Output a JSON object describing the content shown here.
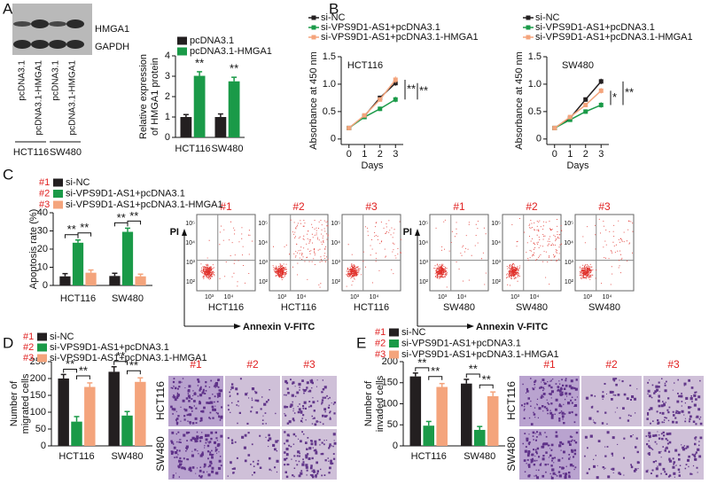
{
  "panel_labels": [
    "A",
    "B",
    "C",
    "D",
    "E"
  ],
  "blot": {
    "bands": [
      "HMGA1",
      "GAPDH"
    ],
    "lanes": [
      "pcDNA3.1",
      "pcDNA3.1-HMGA1",
      "pcDNA3.1",
      "pcDNA3.1-HMGA1"
    ],
    "groups": [
      "HCT116",
      "SW480"
    ]
  },
  "flow": {
    "y_label": "PI",
    "x_label": "Annexin V-FITC",
    "y_ticks": [
      "10⁵",
      "10⁴",
      "10³",
      "10²"
    ],
    "x_ticks": [
      "10³",
      "10⁴"
    ],
    "groups": [
      {
        "cell": "HCT116",
        "plots": [
          "#1",
          "#2",
          "#3"
        ]
      },
      {
        "cell": "SW480",
        "plots": [
          "#1",
          "#2",
          "#3"
        ]
      }
    ]
  },
  "micrographs": [
    {
      "columns": [
        "#1",
        "#2",
        "#3"
      ],
      "rows": [
        "HCT116",
        "SW480"
      ]
    },
    {
      "columns": [
        "#1",
        "#2",
        "#3"
      ],
      "rows": [
        "HCT116",
        "SW480"
      ]
    }
  ],
  "chart_data": [
    {
      "type": "bar",
      "y_label": [
        "Relative expression",
        "of HMGA1 protein"
      ],
      "categories": [
        "HCT116",
        "SW480"
      ],
      "series": [
        {
          "name": "pcDNA3.1",
          "color": "#231f20",
          "values": [
            1,
            1
          ],
          "errors": [
            0.12,
            0.15
          ]
        },
        {
          "name": "pcDNA3.1-HMGA1",
          "color": "#1a9a48",
          "values": [
            3.02,
            2.75
          ],
          "errors": [
            0.2,
            0.2
          ]
        }
      ],
      "ylim": [
        0,
        4
      ],
      "yticks": [
        0,
        1,
        2,
        3,
        4
      ],
      "annotations": [
        "**",
        "**"
      ]
    },
    {
      "type": "line",
      "subtitle": "HCT116",
      "x_label": "Days",
      "y_label": [
        "Absorbance at 450 nm"
      ],
      "x": [
        0,
        1,
        2,
        3
      ],
      "series": [
        {
          "name": "si-NC",
          "color": "#231f20",
          "values": [
            0.2,
            0.42,
            0.75,
            1.02
          ],
          "errors": [
            0.03,
            0.03,
            0.04,
            0.05
          ]
        },
        {
          "name": "si-VPS9D1-AS1+pcDNA3.1",
          "color": "#1a9a48",
          "values": [
            0.2,
            0.4,
            0.55,
            0.72
          ],
          "errors": [
            0.03,
            0.03,
            0.04,
            0.05
          ]
        },
        {
          "name": "si-VPS9D1-AS1+pcDNA3.1-HMGA1",
          "color": "#f4a47c",
          "values": [
            0.2,
            0.43,
            0.72,
            1.08
          ],
          "errors": [
            0.03,
            0.03,
            0.04,
            0.06
          ]
        }
      ],
      "xlim": [
        -0.5,
        3.5
      ],
      "xticks": [
        0,
        1,
        2,
        3
      ],
      "ylim": [
        -0.1,
        1.5
      ],
      "yticks": [
        0,
        0.5,
        {
          "value": 1,
          "label": "1.0"
        },
        1.5
      ],
      "annotations": [
        "**",
        "**"
      ]
    },
    {
      "type": "line",
      "subtitle": "SW480",
      "x_label": "Days",
      "y_label": [
        "Absorbance at 450 nm"
      ],
      "x": [
        0,
        1,
        2,
        3
      ],
      "series": [
        {
          "name": "si-NC",
          "color": "#231f20",
          "values": [
            0.2,
            0.38,
            0.72,
            1.05
          ],
          "errors": [
            0.03,
            0.03,
            0.04,
            0.05
          ]
        },
        {
          "name": "si-VPS9D1-AS1+pcDNA3.1",
          "color": "#1a9a48",
          "values": [
            0.2,
            0.35,
            0.5,
            0.62
          ],
          "errors": [
            0.03,
            0.03,
            0.04,
            0.05
          ]
        },
        {
          "name": "si-VPS9D1-AS1+pcDNA3.1-HMGA1",
          "color": "#f4a47c",
          "values": [
            0.2,
            0.4,
            0.62,
            0.88
          ],
          "errors": [
            0.03,
            0.03,
            0.04,
            0.05
          ]
        }
      ],
      "xlim": [
        -0.5,
        3.5
      ],
      "xticks": [
        0,
        1,
        2,
        3
      ],
      "ylim": [
        -0.1,
        1.5
      ],
      "yticks": [
        0,
        0.5,
        {
          "value": 1,
          "label": "1.0"
        },
        1.5
      ],
      "annotations": [
        "*",
        "**"
      ]
    },
    {
      "type": "bar",
      "y_label": [
        "Apoptosis rate (%)"
      ],
      "legend_prefixes": [
        "#1",
        "#2",
        "#3"
      ],
      "categories": [
        "HCT116",
        "SW480"
      ],
      "series": [
        {
          "name": "si-NC",
          "color": "#231f20",
          "values": [
            5,
            5.2
          ],
          "errors": [
            1.5,
            1.5
          ]
        },
        {
          "name": "si-VPS9D1-AS1+pcDNA3.1",
          "color": "#1a9a48",
          "values": [
            23.5,
            29.5
          ],
          "errors": [
            1.5,
            2
          ]
        },
        {
          "name": "si-VPS9D1-AS1+pcDNA3.1-HMGA1",
          "color": "#f4a47c",
          "values": [
            7,
            5
          ],
          "errors": [
            1.5,
            1.2
          ]
        }
      ],
      "ylim": [
        0,
        40
      ],
      "yticks": [
        0,
        10,
        20,
        30,
        40
      ],
      "annotations": [
        "**",
        "**",
        "**",
        "**"
      ]
    },
    {
      "type": "bar",
      "y_label": [
        "Number of",
        "migrated cells"
      ],
      "legend_prefixes": [
        "#1",
        "#2",
        "#3"
      ],
      "categories": [
        "HCT116",
        "SW480"
      ],
      "series": [
        {
          "name": "si-NC",
          "color": "#231f20",
          "values": [
            200,
            220
          ],
          "errors": [
            12,
            15
          ]
        },
        {
          "name": "si-VPS9D1-AS1+pcDNA3.1",
          "color": "#1a9a48",
          "values": [
            72,
            90
          ],
          "errors": [
            15,
            12
          ]
        },
        {
          "name": "si-VPS9D1-AS1+pcDNA3.1-HMGA1",
          "color": "#f4a47c",
          "values": [
            175,
            190
          ],
          "errors": [
            12,
            12
          ]
        }
      ],
      "ylim": [
        0,
        250
      ],
      "yticks": [
        0,
        50,
        100,
        150,
        200,
        250
      ],
      "annotations": [
        "**",
        "**",
        "**",
        "**"
      ]
    },
    {
      "type": "bar",
      "y_label": [
        "Number of",
        "invaded cells"
      ],
      "legend_prefixes": [
        "#1",
        "#2",
        "#3"
      ],
      "categories": [
        "HCT116",
        "SW480"
      ],
      "series": [
        {
          "name": "si-NC",
          "color": "#231f20",
          "values": [
            165,
            148
          ],
          "errors": [
            8,
            10
          ]
        },
        {
          "name": "si-VPS9D1-AS1+pcDNA3.1",
          "color": "#1a9a48",
          "values": [
            48,
            38
          ],
          "errors": [
            10,
            8
          ]
        },
        {
          "name": "si-VPS9D1-AS1+pcDNA3.1-HMGA1",
          "color": "#f4a47c",
          "values": [
            140,
            118
          ],
          "errors": [
            8,
            10
          ]
        }
      ],
      "ylim": [
        0,
        200
      ],
      "yticks": [
        0,
        50,
        100,
        150,
        200
      ],
      "annotations": [
        "**",
        "**",
        "**",
        "**"
      ]
    }
  ]
}
